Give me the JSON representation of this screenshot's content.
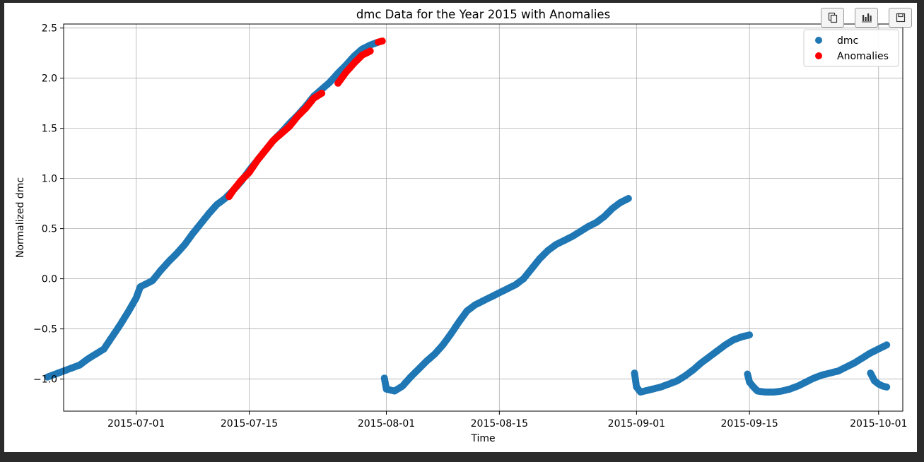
{
  "toolbar": {
    "buttons": [
      {
        "icon": "copy-icon"
      },
      {
        "icon": "bar-chart-icon"
      },
      {
        "icon": "save-icon"
      }
    ]
  },
  "chart_data": {
    "type": "scatter",
    "title": "dmc Data for the Year 2015 with Anomalies",
    "xlabel": "Time",
    "ylabel": "Normalized dmc",
    "x_axis_type": "date",
    "xlim": [
      "2015-06-22",
      "2015-10-04"
    ],
    "ylim": [
      -1.32,
      2.54
    ],
    "x_ticks": [
      "2015-07-01",
      "2015-07-15",
      "2015-08-01",
      "2015-08-15",
      "2015-09-01",
      "2015-09-15",
      "2015-10-01"
    ],
    "y_ticks": [
      -1.0,
      -0.5,
      0.0,
      0.5,
      1.0,
      1.5,
      2.0,
      2.5
    ],
    "y_tick_labels": [
      "−1.0",
      "−0.5",
      "0.0",
      "0.5",
      "1.0",
      "1.5",
      "2.0",
      "2.5"
    ],
    "grid": true,
    "legend": "top-right",
    "series": [
      {
        "name": "dmc",
        "color": "#1f77b4",
        "segments": [
          {
            "points": [
              [
                "2015-06-20",
                -0.98
              ],
              [
                "2015-06-22",
                -0.92
              ],
              [
                "2015-06-24",
                -0.86
              ],
              [
                "2015-06-25",
                -0.8
              ],
              [
                "2015-06-27",
                -0.7
              ],
              [
                "2015-06-28",
                -0.58
              ],
              [
                "2015-06-29",
                -0.46
              ],
              [
                "2015-06-30",
                -0.33
              ],
              [
                "2015-07-01",
                -0.19
              ],
              [
                "2015-07-01 12:00",
                -0.08
              ],
              [
                "2015-07-03",
                -0.02
              ],
              [
                "2015-07-04",
                0.08
              ],
              [
                "2015-07-05",
                0.17
              ],
              [
                "2015-07-06",
                0.25
              ],
              [
                "2015-07-07",
                0.34
              ],
              [
                "2015-07-08",
                0.45
              ],
              [
                "2015-07-09",
                0.55
              ],
              [
                "2015-07-10",
                0.65
              ],
              [
                "2015-07-11",
                0.74
              ],
              [
                "2015-07-12",
                0.8
              ],
              [
                "2015-07-13",
                0.88
              ],
              [
                "2015-07-14",
                0.97
              ],
              [
                "2015-07-15",
                1.08
              ],
              [
                "2015-07-16",
                1.18
              ],
              [
                "2015-07-17",
                1.28
              ],
              [
                "2015-07-18",
                1.38
              ],
              [
                "2015-07-19",
                1.46
              ],
              [
                "2015-07-20",
                1.55
              ],
              [
                "2015-07-21",
                1.63
              ],
              [
                "2015-07-22",
                1.72
              ],
              [
                "2015-07-23",
                1.82
              ],
              [
                "2015-07-24",
                1.89
              ],
              [
                "2015-07-25",
                1.96
              ],
              [
                "2015-07-26",
                2.05
              ],
              [
                "2015-07-27",
                2.13
              ],
              [
                "2015-07-28",
                2.22
              ],
              [
                "2015-07-29",
                2.29
              ],
              [
                "2015-07-30",
                2.33
              ],
              [
                "2015-07-31",
                2.36
              ]
            ]
          },
          {
            "points": [
              [
                "2015-07-31 18:00",
                -0.99
              ],
              [
                "2015-08-01",
                -1.1
              ],
              [
                "2015-08-02",
                -1.12
              ],
              [
                "2015-08-03",
                -1.07
              ],
              [
                "2015-08-04",
                -0.98
              ],
              [
                "2015-08-05",
                -0.9
              ],
              [
                "2015-08-06",
                -0.82
              ],
              [
                "2015-08-07",
                -0.75
              ],
              [
                "2015-08-08",
                -0.66
              ],
              [
                "2015-08-09",
                -0.55
              ],
              [
                "2015-08-10",
                -0.43
              ],
              [
                "2015-08-11",
                -0.32
              ],
              [
                "2015-08-12",
                -0.26
              ],
              [
                "2015-08-13",
                -0.22
              ],
              [
                "2015-08-14",
                -0.18
              ],
              [
                "2015-08-15",
                -0.14
              ],
              [
                "2015-08-16",
                -0.1
              ],
              [
                "2015-08-17",
                -0.06
              ],
              [
                "2015-08-18",
                0.0
              ],
              [
                "2015-08-19",
                0.1
              ],
              [
                "2015-08-20",
                0.2
              ],
              [
                "2015-08-21",
                0.28
              ],
              [
                "2015-08-22",
                0.34
              ],
              [
                "2015-08-23",
                0.38
              ],
              [
                "2015-08-24",
                0.42
              ],
              [
                "2015-08-25",
                0.47
              ],
              [
                "2015-08-26",
                0.52
              ],
              [
                "2015-08-27",
                0.56
              ],
              [
                "2015-08-28",
                0.62
              ],
              [
                "2015-08-29",
                0.7
              ],
              [
                "2015-08-30",
                0.76
              ],
              [
                "2015-08-31",
                0.8
              ]
            ]
          },
          {
            "points": [
              [
                "2015-08-31 18:00",
                -0.94
              ],
              [
                "2015-09-01",
                -1.08
              ],
              [
                "2015-09-01 12:00",
                -1.13
              ],
              [
                "2015-09-03",
                -1.1
              ],
              [
                "2015-09-04",
                -1.08
              ],
              [
                "2015-09-05",
                -1.05
              ],
              [
                "2015-09-06",
                -1.02
              ],
              [
                "2015-09-07",
                -0.97
              ],
              [
                "2015-09-08",
                -0.91
              ],
              [
                "2015-09-09",
                -0.84
              ],
              [
                "2015-09-10",
                -0.78
              ],
              [
                "2015-09-11",
                -0.72
              ],
              [
                "2015-09-12",
                -0.66
              ],
              [
                "2015-09-13",
                -0.61
              ],
              [
                "2015-09-14",
                -0.58
              ],
              [
                "2015-09-15",
                -0.56
              ]
            ]
          },
          {
            "points": [
              [
                "2015-09-14 18:00",
                -0.95
              ],
              [
                "2015-09-15",
                -1.03
              ],
              [
                "2015-09-15 12:00",
                -1.08
              ],
              [
                "2015-09-16",
                -1.12
              ],
              [
                "2015-09-17",
                -1.13
              ],
              [
                "2015-09-18",
                -1.13
              ],
              [
                "2015-09-19",
                -1.12
              ],
              [
                "2015-09-20",
                -1.1
              ],
              [
                "2015-09-21",
                -1.07
              ],
              [
                "2015-09-22",
                -1.03
              ],
              [
                "2015-09-23",
                -0.99
              ],
              [
                "2015-09-24",
                -0.96
              ],
              [
                "2015-09-25",
                -0.94
              ],
              [
                "2015-09-26",
                -0.92
              ],
              [
                "2015-09-27",
                -0.88
              ],
              [
                "2015-09-28",
                -0.84
              ],
              [
                "2015-09-29",
                -0.79
              ],
              [
                "2015-09-30",
                -0.74
              ],
              [
                "2015-10-01",
                -0.7
              ],
              [
                "2015-10-02",
                -0.66
              ]
            ]
          },
          {
            "points": [
              [
                "2015-09-30",
                -0.94
              ],
              [
                "2015-09-30 12:00",
                -1.02
              ],
              [
                "2015-10-01",
                -1.05
              ],
              [
                "2015-10-01 12:00",
                -1.07
              ],
              [
                "2015-10-02",
                -1.08
              ]
            ]
          }
        ]
      },
      {
        "name": "Anomalies",
        "color": "#ff0000",
        "segments": [
          {
            "points": [
              [
                "2015-07-12 12:00",
                0.82
              ],
              [
                "2015-07-13",
                0.88
              ],
              [
                "2015-07-14",
                0.98
              ],
              [
                "2015-07-15",
                1.06
              ],
              [
                "2015-07-16",
                1.18
              ],
              [
                "2015-07-17",
                1.28
              ],
              [
                "2015-07-18",
                1.38
              ],
              [
                "2015-07-19",
                1.45
              ],
              [
                "2015-07-20",
                1.52
              ],
              [
                "2015-07-21",
                1.62
              ],
              [
                "2015-07-22",
                1.7
              ],
              [
                "2015-07-23",
                1.8
              ],
              [
                "2015-07-24",
                1.85
              ]
            ]
          },
          {
            "points": [
              [
                "2015-07-26",
                1.95
              ],
              [
                "2015-07-27",
                2.06
              ],
              [
                "2015-07-28",
                2.15
              ],
              [
                "2015-07-29",
                2.23
              ],
              [
                "2015-07-30",
                2.27
              ]
            ]
          },
          {
            "points": [
              [
                "2015-07-31",
                2.36
              ],
              [
                "2015-07-31 12:00",
                2.37
              ]
            ]
          }
        ]
      }
    ]
  }
}
